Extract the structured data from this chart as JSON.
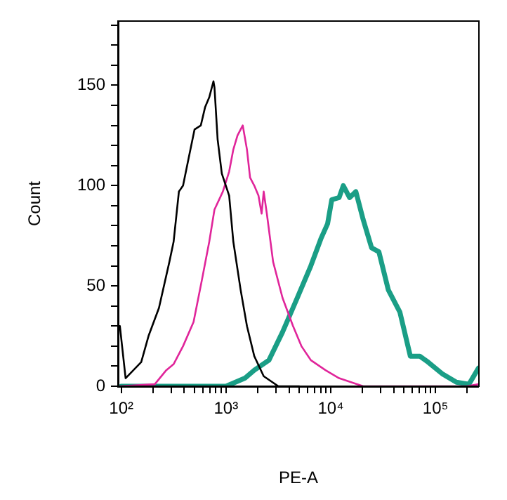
{
  "chart_data": {
    "type": "line",
    "xlabel": "PE-A",
    "ylabel": "Count",
    "log": "x",
    "grid": false,
    "legend": false,
    "marker": "none",
    "line_style": "solid",
    "xlim": [
      93,
      260000
    ],
    "ylim": [
      0,
      182
    ],
    "xticks": [
      {
        "value": 100,
        "label": "10²"
      },
      {
        "value": 200,
        "label": null
      },
      {
        "value": 300,
        "label": null
      },
      {
        "value": 400,
        "label": null
      },
      {
        "value": 500,
        "label": null
      },
      {
        "value": 600,
        "label": null
      },
      {
        "value": 700,
        "label": null
      },
      {
        "value": 800,
        "label": null
      },
      {
        "value": 900,
        "label": null
      },
      {
        "value": 1000,
        "label": "10³"
      },
      {
        "value": 2000,
        "label": null
      },
      {
        "value": 3000,
        "label": null
      },
      {
        "value": 4000,
        "label": null
      },
      {
        "value": 5000,
        "label": null
      },
      {
        "value": 6000,
        "label": null
      },
      {
        "value": 7000,
        "label": null
      },
      {
        "value": 8000,
        "label": null
      },
      {
        "value": 9000,
        "label": null
      },
      {
        "value": 10000,
        "label": "10⁴"
      },
      {
        "value": 20000,
        "label": null
      },
      {
        "value": 30000,
        "label": null
      },
      {
        "value": 40000,
        "label": null
      },
      {
        "value": 50000,
        "label": null
      },
      {
        "value": 60000,
        "label": null
      },
      {
        "value": 70000,
        "label": null
      },
      {
        "value": 80000,
        "label": null
      },
      {
        "value": 90000,
        "label": null
      },
      {
        "value": 100000,
        "label": "10⁵"
      },
      {
        "value": 200000,
        "label": null
      }
    ],
    "yticks": [
      0,
      {
        "value": 10,
        "label": null
      },
      {
        "value": 20,
        "label": null
      },
      {
        "value": 30,
        "label": null
      },
      {
        "value": 40,
        "label": null
      },
      50,
      {
        "value": 60,
        "label": null
      },
      {
        "value": 70,
        "label": null
      },
      {
        "value": 80,
        "label": null
      },
      {
        "value": 90,
        "label": null
      },
      100,
      {
        "value": 110,
        "label": null
      },
      {
        "value": 120,
        "label": null
      },
      {
        "value": 130,
        "label": null
      },
      {
        "value": 140,
        "label": null
      },
      150,
      {
        "value": 160,
        "label": null
      },
      {
        "value": 170,
        "label": null
      },
      {
        "value": 180,
        "label": null
      }
    ],
    "series": [
      {
        "color": "#000000",
        "x": [
          97,
          110,
          155,
          182,
          229,
          288,
          316,
          355,
          389,
          437,
          501,
          575,
          631,
          692,
          759,
          776,
          832,
          912,
          1072,
          1175,
          1380,
          1585,
          1862,
          2291,
          3162,
          5000
        ],
        "values": [
          30,
          4,
          12,
          25,
          39,
          62,
          72,
          97,
          100,
          113,
          128,
          130,
          139,
          144,
          152,
          149,
          123,
          106,
          95,
          72,
          48,
          30,
          15,
          5,
          0,
          0
        ]
      },
      {
        "color": "#e0259a",
        "x": [
          97,
          209,
          269,
          316,
          389,
          490,
          589,
          692,
          776,
          933,
          1072,
          1175,
          1288,
          1445,
          1585,
          1698,
          1862,
          2042,
          2188,
          2291,
          2455,
          2818,
          3467,
          4365,
          5248,
          6457,
          8913,
          12023,
          20417,
          200000,
          257000
        ],
        "values": [
          0,
          1,
          8,
          11,
          20,
          32,
          53,
          72,
          88,
          97,
          107,
          118,
          125,
          130,
          118,
          104,
          100,
          95,
          86,
          97,
          86,
          62,
          44,
          30,
          20,
          13,
          8,
          4,
          0,
          0,
          1
        ]
      },
      {
        "color": "#1a9e86",
        "x": [
          100,
          1000,
          1514,
          1862,
          2570,
          3467,
          4786,
          6457,
          8128,
          9333,
          10233,
          12023,
          13183,
          15136,
          17378,
          20417,
          24547,
          28840,
          35481,
          45709,
          57544,
          70795,
          85114,
          117490,
          158489,
          208930,
          257040
        ],
        "values": [
          0,
          0,
          4,
          8,
          13,
          27,
          44,
          60,
          74,
          81,
          93,
          94,
          100,
          94,
          97,
          83,
          69,
          67,
          48,
          37,
          15,
          15,
          12,
          6,
          2,
          1,
          9
        ]
      }
    ]
  }
}
